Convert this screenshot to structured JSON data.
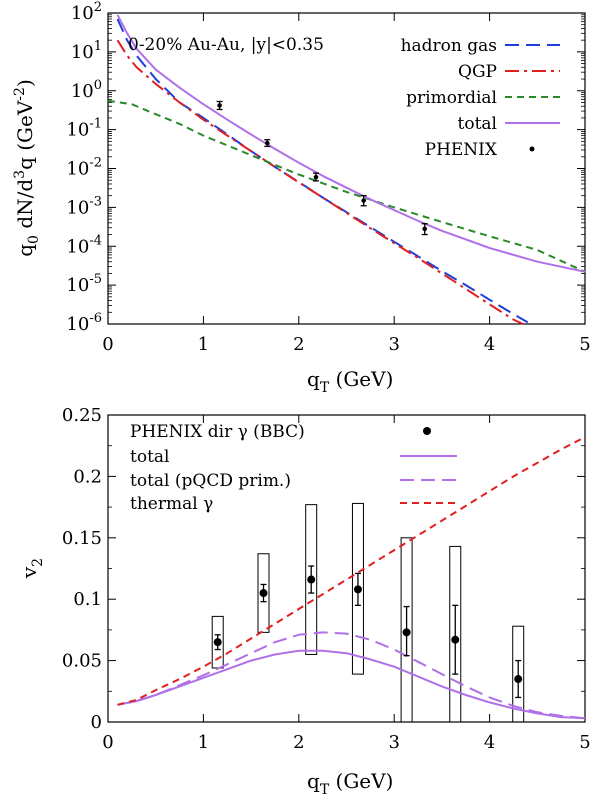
{
  "chart_data": [
    {
      "type": "line",
      "annotation": "0-20% Au-Au, |y|<0.35",
      "xlabel": "q_T (GeV)",
      "ylabel": "q_0 dN/d^3q (GeV^-2)",
      "xlim": [
        0,
        5
      ],
      "ylim": [
        1e-06,
        100
      ],
      "yscale": "log",
      "xticks": [
        "0",
        "1",
        "2",
        "3",
        "4",
        "5"
      ],
      "yticks": [
        "10^-6",
        "10^-5",
        "10^-4",
        "10^-3",
        "10^-2",
        "10^-1",
        "10^0",
        "10^1",
        "10^2"
      ],
      "legend_position": "top-right",
      "series": [
        {
          "name": "hadron gas",
          "color": "#1f3fdc",
          "dash": "dash",
          "x": [
            0.1,
            0.2,
            0.3,
            0.5,
            0.75,
            1.0,
            1.25,
            1.5,
            1.75,
            2.0,
            2.25,
            2.5,
            2.75,
            3.0,
            3.25,
            3.5,
            3.75,
            4.0,
            4.25,
            4.4
          ],
          "y": [
            70,
            20,
            8,
            2,
            0.5,
            0.2,
            0.075,
            0.028,
            0.011,
            0.0045,
            0.0018,
            0.00075,
            0.00031,
            0.00013,
            5.5e-05,
            2.3e-05,
            1e-05,
            4.2e-06,
            1.8e-06,
            1.1e-06
          ]
        },
        {
          "name": "QGP",
          "color": "#e02020",
          "dash": "dashdot",
          "x": [
            0.1,
            0.2,
            0.3,
            0.5,
            0.75,
            1.0,
            1.25,
            1.5,
            1.75,
            2.0,
            2.25,
            2.5,
            2.75,
            3.0,
            3.25,
            3.5,
            3.75,
            4.0,
            4.25,
            4.35
          ],
          "y": [
            20,
            8,
            4,
            1.5,
            0.5,
            0.18,
            0.07,
            0.028,
            0.011,
            0.0044,
            0.0018,
            0.00072,
            0.00029,
            0.00012,
            5e-05,
            2e-05,
            8e-06,
            3.2e-06,
            1.3e-06,
            1e-06
          ]
        },
        {
          "name": "primordial",
          "color": "#2a8a2a",
          "dash": "shortdash",
          "x": [
            0.0,
            0.25,
            0.5,
            0.75,
            1.0,
            1.5,
            2.0,
            2.5,
            3.0,
            3.5,
            4.0,
            4.5,
            5.0
          ],
          "y": [
            0.55,
            0.45,
            0.25,
            0.14,
            0.07,
            0.022,
            0.007,
            0.0025,
            0.001,
            0.00042,
            0.00018,
            8e-05,
            2.2e-05
          ]
        },
        {
          "name": "total",
          "color": "#b070e8",
          "dash": "solid",
          "x": [
            0.1,
            0.2,
            0.3,
            0.5,
            0.75,
            1.0,
            1.25,
            1.5,
            1.75,
            2.0,
            2.25,
            2.5,
            2.75,
            3.0,
            3.25,
            3.5,
            4.0,
            4.5,
            5.0
          ],
          "y": [
            90,
            30,
            12,
            3.5,
            1.2,
            0.45,
            0.18,
            0.075,
            0.032,
            0.014,
            0.0065,
            0.0032,
            0.0016,
            0.00085,
            0.00045,
            0.00025,
            9e-05,
            4e-05,
            2.2e-05
          ]
        }
      ],
      "points": {
        "name": "PHENIX",
        "color": "#000000",
        "x": [
          1.17,
          1.67,
          2.18,
          2.68,
          3.32
        ],
        "y": [
          0.42,
          0.045,
          0.006,
          0.0015,
          0.00028
        ],
        "ylo": [
          0.33,
          0.037,
          0.0048,
          0.0011,
          0.0002
        ],
        "yhi": [
          0.53,
          0.055,
          0.0076,
          0.002,
          0.00038
        ]
      }
    },
    {
      "type": "line",
      "xlabel": "q_T (GeV)",
      "ylabel": "v_2",
      "xlim": [
        0,
        5
      ],
      "ylim": [
        0,
        0.25
      ],
      "yscale": "linear",
      "xticks": [
        "0",
        "1",
        "2",
        "3",
        "4",
        "5"
      ],
      "yticks": [
        "0",
        "0.05",
        "0.1",
        "0.15",
        "0.2",
        "0.25"
      ],
      "legend_position": "top-left",
      "series": [
        {
          "name": "total",
          "color": "#b070e8",
          "dash": "solid",
          "x": [
            0.1,
            0.3,
            0.5,
            0.75,
            1.0,
            1.25,
            1.5,
            1.75,
            2.0,
            2.25,
            2.5,
            2.75,
            3.0,
            3.25,
            3.5,
            3.75,
            4.0,
            4.25,
            4.5,
            4.75,
            5.0
          ],
          "y": [
            0.014,
            0.017,
            0.022,
            0.029,
            0.036,
            0.043,
            0.05,
            0.055,
            0.058,
            0.058,
            0.056,
            0.051,
            0.045,
            0.037,
            0.029,
            0.022,
            0.016,
            0.011,
            0.007,
            0.004,
            0.003
          ]
        },
        {
          "name": "total (pQCD prim.)",
          "color": "#b070e8",
          "dash": "dash",
          "x": [
            0.1,
            0.3,
            0.5,
            0.75,
            1.0,
            1.25,
            1.5,
            1.75,
            2.0,
            2.25,
            2.5,
            2.75,
            3.0,
            3.25,
            3.5,
            3.75,
            4.0,
            4.25,
            4.5,
            4.75,
            5.0
          ],
          "y": [
            0.014,
            0.017,
            0.022,
            0.03,
            0.038,
            0.047,
            0.056,
            0.065,
            0.071,
            0.073,
            0.072,
            0.067,
            0.059,
            0.049,
            0.039,
            0.029,
            0.02,
            0.013,
            0.008,
            0.005,
            0.003
          ]
        },
        {
          "name": "thermal γ",
          "color": "#e02020",
          "dash": "shortdash",
          "x": [
            0.1,
            0.3,
            0.5,
            0.75,
            1.0,
            1.25,
            1.5,
            1.75,
            2.0,
            2.25,
            2.5,
            2.75,
            3.0,
            3.25,
            3.5,
            3.75,
            4.0,
            4.25,
            4.5,
            4.75,
            5.0
          ],
          "y": [
            0.014,
            0.018,
            0.026,
            0.035,
            0.045,
            0.056,
            0.068,
            0.08,
            0.092,
            0.104,
            0.116,
            0.128,
            0.14,
            0.152,
            0.164,
            0.176,
            0.188,
            0.2,
            0.211,
            0.222,
            0.232
          ]
        }
      ],
      "points": {
        "name": "PHENIX dir γ (BBC)",
        "color": "#000000",
        "x": [
          1.15,
          1.63,
          2.13,
          2.62,
          3.13,
          3.64,
          4.3
        ],
        "y": [
          0.065,
          0.105,
          0.116,
          0.108,
          0.073,
          0.067,
          0.035
        ],
        "ylo": [
          0.059,
          0.098,
          0.105,
          0.095,
          0.054,
          0.039,
          0.02
        ],
        "yhi": [
          0.071,
          0.112,
          0.127,
          0.121,
          0.094,
          0.095,
          0.05
        ],
        "sys_lo": [
          0.044,
          0.073,
          0.055,
          0.039,
          0.0,
          0.0,
          0.0
        ],
        "sys_hi": [
          0.086,
          0.137,
          0.177,
          0.178,
          0.15,
          0.143,
          0.078
        ]
      }
    }
  ]
}
